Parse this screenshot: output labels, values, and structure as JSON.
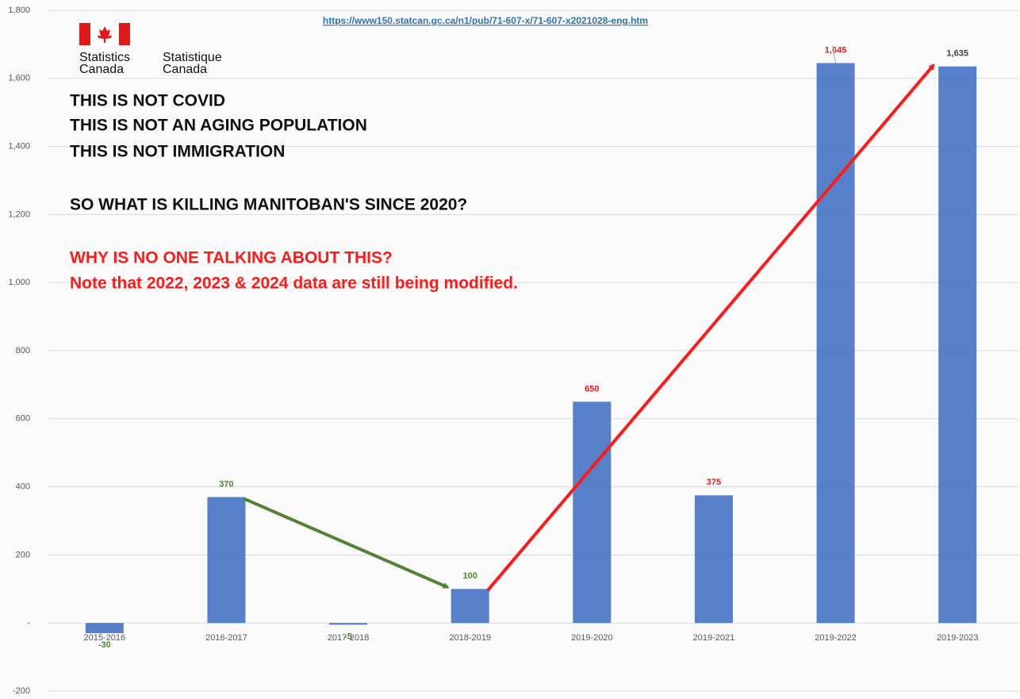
{
  "chart_data": {
    "type": "bar",
    "source": "https://www150.statcan.gc.ca/n1/pub/71-607-x/71-607-x2021028-eng.htm",
    "logo_en": [
      "Statistics",
      "Canada"
    ],
    "logo_fr": [
      "Statistique",
      "Canada"
    ],
    "notes": [
      "THIS IS NOT COVID",
      "THIS IS NOT AN AGING POPULATION",
      "THIS IS NOT IMMIGRATION",
      "SO WHAT IS KILLING MANITOBAN'S SINCE 2020?"
    ],
    "notes_red": [
      "WHY IS NO ONE TALKING ABOUT THIS?",
      "Note that 2022, 2023 & 2024 data are still being modified."
    ],
    "categories": [
      "2015-2016",
      "2016-2017",
      "2017-2018",
      "2018-2019",
      "2019-2020",
      "2019-2021",
      "2019-2022",
      "2019-2023"
    ],
    "values": [
      -30,
      370,
      -5,
      100,
      650,
      375,
      1645,
      1635
    ],
    "value_labels": [
      "-30",
      "370",
      "-5",
      "100",
      "650",
      "375",
      "1,645",
      "1,635"
    ],
    "value_label_colors": [
      "#548235",
      "#548235",
      "#548235",
      "#548235",
      "#e02020",
      "#e02020",
      "#e02020",
      "#404040"
    ],
    "color": "#4472c4",
    "ylim": [
      -200,
      1800
    ],
    "yticks": [
      -200,
      {
        "value": 0,
        "label": "-"
      },
      200,
      400,
      600,
      800,
      {
        "value": 1000,
        "label": "1,000"
      },
      {
        "value": 1200,
        "label": "1,200"
      },
      {
        "value": 1400,
        "label": "1,400"
      },
      {
        "value": 1600,
        "label": "1,600"
      },
      {
        "value": 1800,
        "label": "1,800"
      }
    ],
    "grid": true
  }
}
